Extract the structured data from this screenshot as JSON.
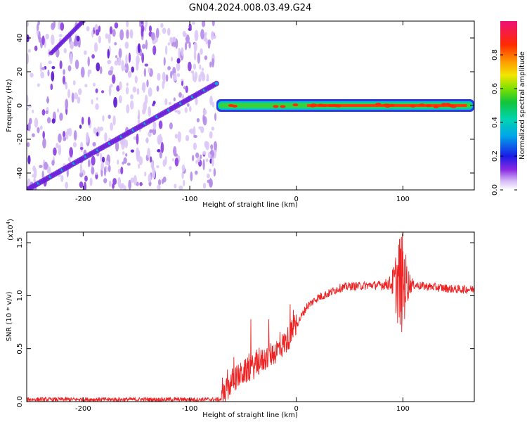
{
  "title": "GN04.2024.008.03.49.G24",
  "chart_data": [
    {
      "type": "heatmap",
      "xlabel": "Height of straight line (km)",
      "ylabel": "Frequency (Hz)",
      "xlim": [
        -253,
        167
      ],
      "ylim": [
        -50,
        50
      ],
      "x_ticks": [
        -200,
        -100,
        0,
        100
      ],
      "y_ticks": [
        -40,
        -20,
        0,
        20,
        40
      ],
      "grid": false,
      "colorbar": {
        "label": "Normalized spectral amplitude",
        "range": [
          0,
          1
        ],
        "ticks": [
          "0.0",
          "0.2",
          "0.4",
          "0.6",
          "0.8"
        ]
      },
      "features": {
        "noise_region_x": [
          -253,
          -75
        ],
        "diagonal_track": {
          "x": [
            -253,
            -75
          ],
          "y": [
            -50,
            13
          ]
        },
        "steady_band": {
          "x": [
            -75,
            167
          ],
          "y": 0
        }
      }
    },
    {
      "type": "line",
      "xlabel": "Height of straight line (km)",
      "ylabel": "SNR (10 * v/v)",
      "y_multiplier_label": "(x10",
      "y_multiplier_exponent": "4",
      "xlim": [
        -253,
        167
      ],
      "ylim": [
        0,
        1.6
      ],
      "x_ticks": [
        -200,
        -100,
        0,
        100
      ],
      "y_ticks": [
        "0.0",
        "0.5",
        "1.0",
        "1.5"
      ],
      "grid": false,
      "series": [
        {
          "color": "#ee2222",
          "x": [
            -253,
            -200,
            -150,
            -100,
            -70,
            -60,
            -50,
            -40,
            -30,
            -20,
            -10,
            0,
            10,
            20,
            30,
            40,
            50,
            60,
            70,
            80,
            90,
            95,
            100,
            105,
            110,
            120,
            130,
            140,
            150,
            160,
            167
          ],
          "y": [
            0.02,
            0.02,
            0.02,
            0.02,
            0.02,
            0.2,
            0.27,
            0.33,
            0.4,
            0.47,
            0.56,
            0.72,
            0.9,
            0.98,
            1.02,
            1.07,
            1.09,
            1.09,
            1.1,
            1.1,
            1.12,
            1.13,
            1.12,
            1.12,
            1.1,
            1.09,
            1.08,
            1.07,
            1.06,
            1.06,
            1.06
          ]
        }
      ]
    }
  ]
}
